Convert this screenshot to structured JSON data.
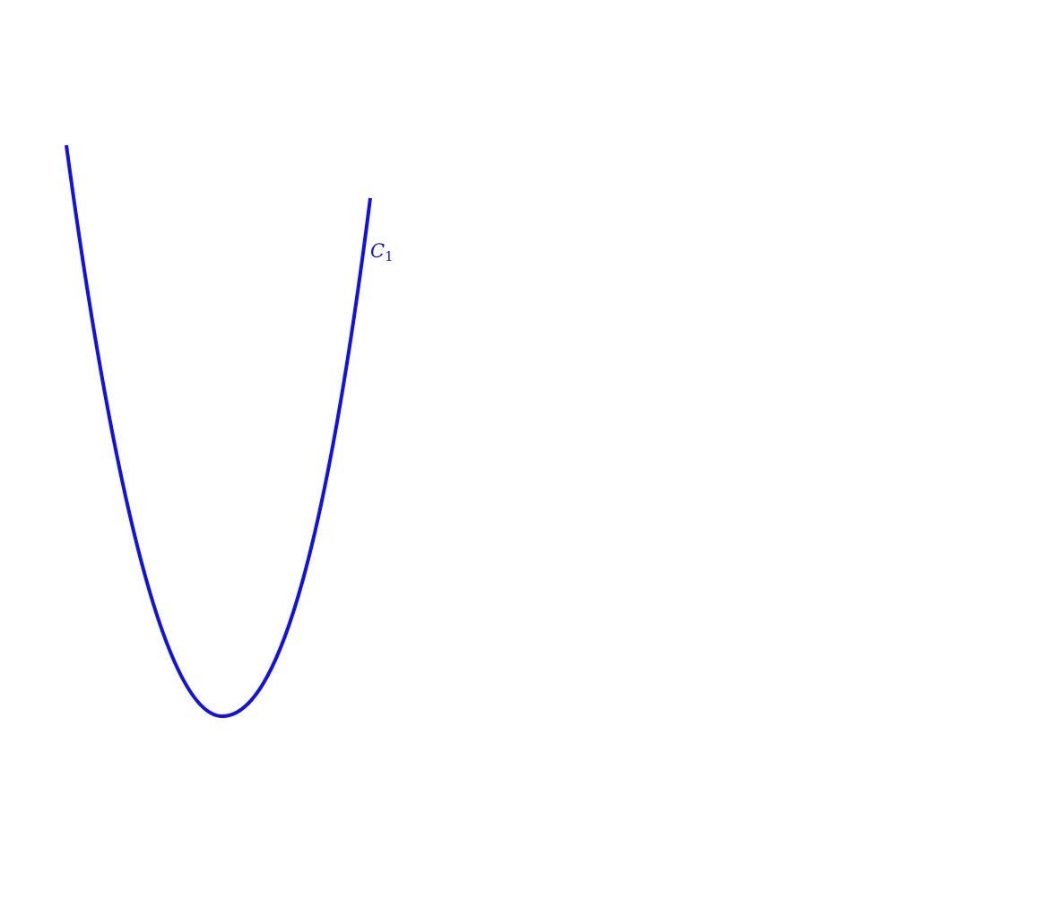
{
  "curve": {
    "label_main": "C",
    "label_subscript": "1",
    "color": "#1010ee",
    "shape": "upward-opening parabola with unequal arms"
  }
}
